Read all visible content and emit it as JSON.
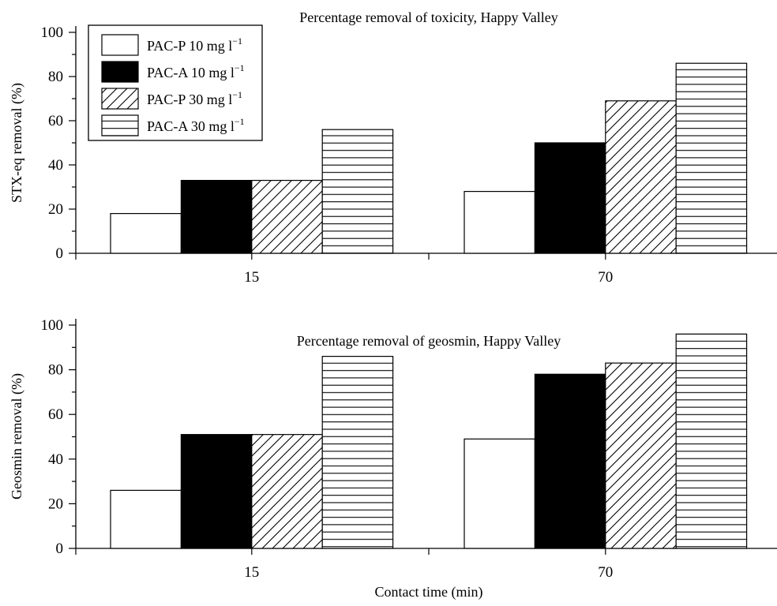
{
  "chart_data": [
    {
      "type": "bar",
      "title": "Percentage removal of toxicity, Happy Valley",
      "xlabel": "",
      "ylabel": "STX-eq removal (%)",
      "ylim": [
        0,
        100
      ],
      "yticks": [
        "0",
        "20",
        "40",
        "60",
        "80",
        "100"
      ],
      "categories": [
        "15",
        "70"
      ],
      "series": [
        {
          "name": "PAC-P 10 mg l",
          "values": [
            18,
            28
          ],
          "pattern": "white"
        },
        {
          "name": "PAC-A 10 mg l",
          "values": [
            33,
            50
          ],
          "pattern": "black"
        },
        {
          "name": "PAC-P 30 mg l",
          "values": [
            33,
            69
          ],
          "pattern": "diagonal"
        },
        {
          "name": "PAC-A 30 mg l",
          "values": [
            56,
            86
          ],
          "pattern": "horizontal"
        }
      ],
      "legend": {
        "placement": "top-left",
        "unit_superscript": "−1"
      }
    },
    {
      "type": "bar",
      "title": "Percentage removal of geosmin, Happy Valley",
      "xlabel": "Contact time (min)",
      "ylabel": "Geosmin removal (%)",
      "ylim": [
        0,
        100
      ],
      "yticks": [
        "0",
        "20",
        "40",
        "60",
        "80",
        "100"
      ],
      "categories": [
        "15",
        "70"
      ],
      "series": [
        {
          "name": "PAC-P 10 mg l",
          "values": [
            26,
            49
          ],
          "pattern": "white"
        },
        {
          "name": "PAC-A 10 mg l",
          "values": [
            51,
            78
          ],
          "pattern": "black"
        },
        {
          "name": "PAC-P 30 mg l",
          "values": [
            51,
            83
          ],
          "pattern": "diagonal"
        },
        {
          "name": "PAC-A 30 mg l",
          "values": [
            86,
            96
          ],
          "pattern": "horizontal"
        }
      ]
    }
  ]
}
